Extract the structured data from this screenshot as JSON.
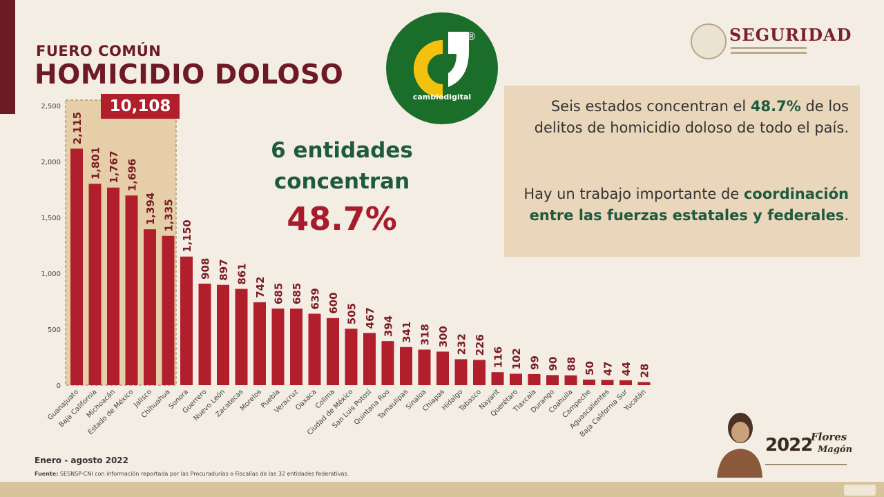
{
  "header": {
    "kicker": "FUERO COMÚN",
    "title": "HOMICIDIO DOLOSO"
  },
  "logo": {
    "name": "cambiodigital",
    "mark": "®",
    "colors": {
      "ring": "#1b6e2a",
      "mark": "#f4c10f"
    }
  },
  "org": {
    "name": "SEGURIDAD",
    "icon": "national-seal-icon"
  },
  "total_badge": "10,108",
  "headline": {
    "line1": "6 entidades",
    "line2": "concentran",
    "percent": "48.7%"
  },
  "note": {
    "p1_a": "Seis estados concentran el ",
    "p1_pct": "48.7%",
    "p1_b": " de los delitos de homicidio doloso de todo el país.",
    "p2_a": "Hay un trabajo importante de ",
    "p2_bold": "coordinación entre las fuerzas estatales y federales",
    "p2_b": "."
  },
  "footer": {
    "period": "Enero - agosto 2022",
    "source_label": "Fuente:",
    "source_text": "SESNSP-CNI con información reportada por las Procuradurías o Fiscalías de las 32 entidades federativas."
  },
  "commemorative": {
    "year": "2022",
    "name_1": "Flores",
    "name_2": "Magón"
  },
  "colors": {
    "bar": "#b11f2c",
    "label_text": "#7a1c24",
    "title": "#6d1a25",
    "accent_green": "#1e5a40",
    "highlight_box": "#e6cea9"
  },
  "chart_data": {
    "type": "bar",
    "categories": [
      "Guanajuato",
      "Baja California",
      "Michoacán",
      "Estado de México",
      "Jalisco",
      "Chihuahua",
      "Sonora",
      "Guerrero",
      "Nuevo León",
      "Zacatecas",
      "Morelos",
      "Puebla",
      "Veracruz",
      "Oaxaca",
      "Colima",
      "Ciudad de México",
      "San Luis Potosí",
      "Quintana Roo",
      "Tamaulipas",
      "Sinaloa",
      "Chiapas",
      "Hidalgo",
      "Tabasco",
      "Nayarit",
      "Querétaro",
      "Tlaxcala",
      "Durango",
      "Coahuila",
      "Campeche",
      "Aguascalientes",
      "Baja California Sur",
      "Yucatán"
    ],
    "values": [
      2115,
      1801,
      1767,
      1696,
      1394,
      1335,
      1150,
      908,
      897,
      861,
      742,
      685,
      685,
      639,
      600,
      505,
      467,
      394,
      341,
      318,
      300,
      232,
      226,
      116,
      102,
      99,
      90,
      88,
      50,
      47,
      44,
      28
    ],
    "value_labels": [
      "2,115",
      "1,801",
      "1,767",
      "1,696",
      "1,394",
      "1,335",
      "1,150",
      "908",
      "897",
      "861",
      "742",
      "685",
      "685",
      "639",
      "600",
      "505",
      "467",
      "394",
      "341",
      "318",
      "300",
      "232",
      "226",
      "116",
      "102",
      "99",
      "90",
      "88",
      "50",
      "47",
      "44",
      "28"
    ],
    "yticks": [
      0,
      500,
      1000,
      1500,
      2000,
      2500
    ],
    "ytick_labels": [
      "0",
      "500",
      "1,000",
      "1,500",
      "2,000",
      "2,500"
    ],
    "ylim": [
      0,
      2500
    ],
    "highlight_count": 6,
    "grid": false,
    "legend": "none"
  }
}
